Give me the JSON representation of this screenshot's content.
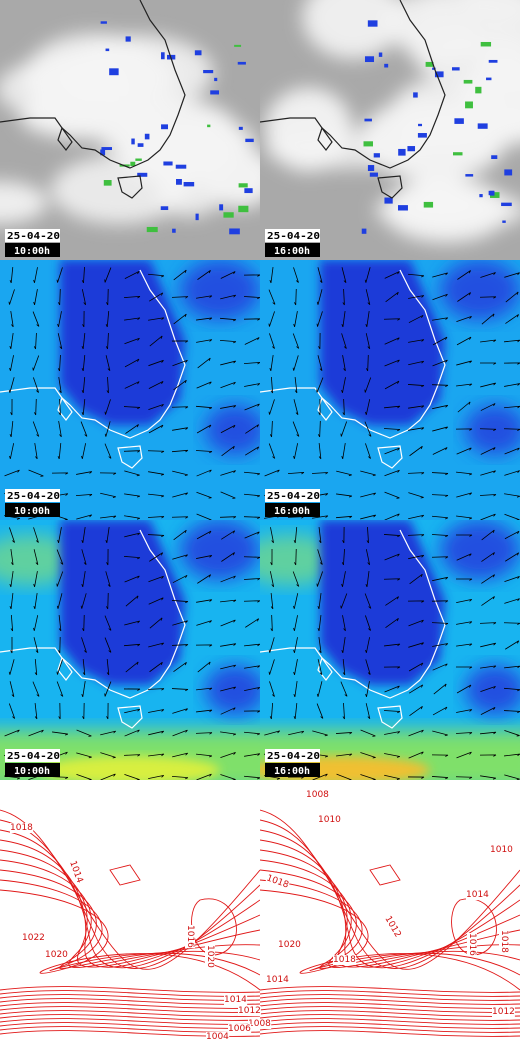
{
  "panels": [
    {
      "date": "25-04-20",
      "time": "10:00h"
    },
    {
      "date": "25-04-20",
      "time": "16:00h"
    },
    {
      "date": "25-04-20",
      "time": "10:00h"
    },
    {
      "date": "25-04-20",
      "time": "16:00h"
    },
    {
      "date": "25-04-20",
      "time": "10:00h"
    },
    {
      "date": "25-04-20",
      "time": "16:00h"
    }
  ],
  "isobar_labels": {
    "left": [
      "1018",
      "1014",
      "1022",
      "1020",
      "1016",
      "1020",
      "1014",
      "1012",
      "1008",
      "1006",
      "1004"
    ],
    "right": [
      "1008",
      "1010",
      "1010",
      "1018",
      "1012",
      "1014",
      "1016",
      "1018",
      "1020",
      "1018",
      "1014",
      "1012"
    ]
  }
}
